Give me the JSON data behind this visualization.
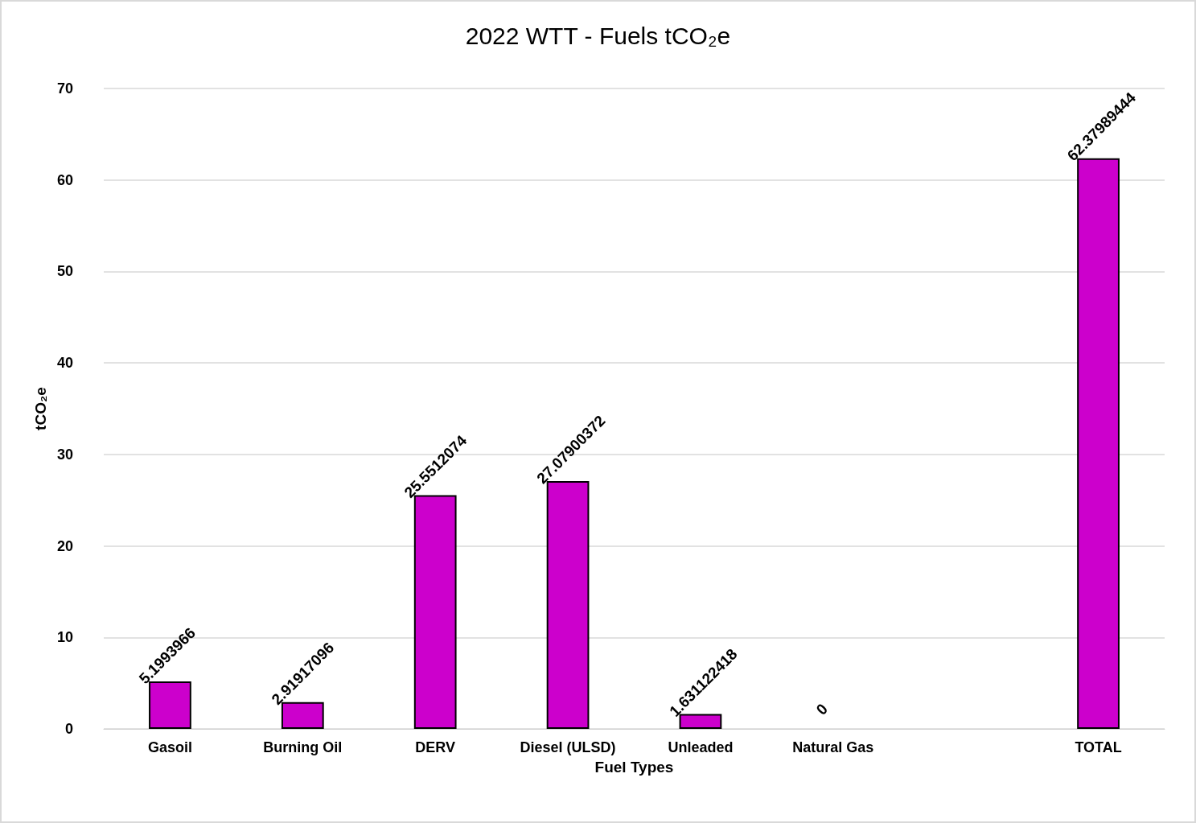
{
  "chart_data": {
    "type": "bar",
    "title": "2022 WTT - Fuels tCO₂e",
    "xlabel": "Fuel Types",
    "ylabel": "tCO₂e",
    "categories": [
      "Gasoil",
      "Burning Oil",
      "DERV",
      "Diesel (ULSD)",
      "Unleaded",
      "Natural Gas",
      null,
      "TOTAL"
    ],
    "values": [
      5.1993966,
      2.91917096,
      25.5512074,
      27.07900372,
      1.631122418,
      0,
      null,
      62.37989444
    ],
    "color": "#cc00cc",
    "ylim": [
      0,
      70
    ],
    "yticks": [
      0,
      10,
      20,
      30,
      40,
      50,
      60,
      70
    ],
    "grid": "y",
    "data_labels": true
  }
}
